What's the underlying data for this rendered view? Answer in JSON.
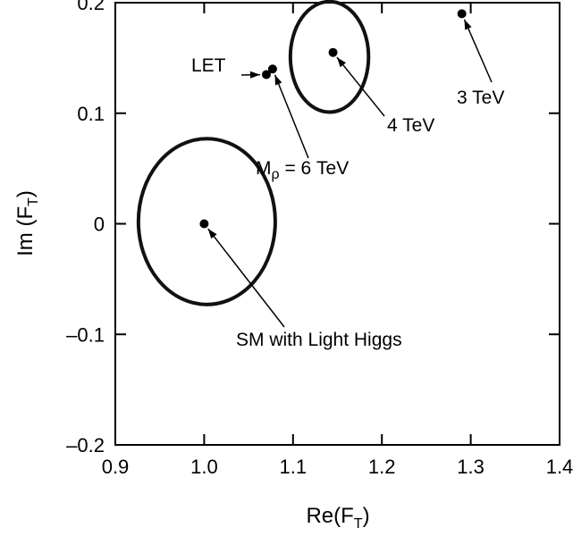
{
  "chart_data": {
    "type": "scatter",
    "title": "",
    "xlabel": {
      "main": "Re(F",
      "sub": "T",
      "close": ")"
    },
    "ylabel": {
      "main": "Im (F",
      "sub": "T",
      "close": ")"
    },
    "xlim": [
      0.9,
      1.4
    ],
    "ylim": [
      -0.2,
      0.2
    ],
    "xticks": [
      0.9,
      1.0,
      1.1,
      1.2,
      1.3,
      1.4
    ],
    "xtick_labels": [
      "0.9",
      "1.0",
      "1.1",
      "1.2",
      "1.3",
      "1.4"
    ],
    "yticks": [
      -0.2,
      -0.1,
      0,
      0.1,
      0.2
    ],
    "ytick_labels": [
      "–0.2",
      "–0.1",
      "0",
      "0.1",
      "0.2"
    ],
    "grid": false,
    "points": [
      {
        "id": "sm",
        "x": 1.0,
        "y": 0.0,
        "label": "SM with Light Higgs"
      },
      {
        "id": "let",
        "x": 1.07,
        "y": 0.135,
        "label": "LET"
      },
      {
        "id": "mrho6",
        "x": 1.077,
        "y": 0.14,
        "label_main": "M",
        "label_sub": "ρ",
        "label_rest": " = 6 TeV"
      },
      {
        "id": "tev4",
        "x": 1.145,
        "y": 0.155,
        "label": "4 TeV"
      },
      {
        "id": "tev3",
        "x": 1.29,
        "y": 0.19,
        "label": "3 TeV"
      }
    ],
    "ellipses": [
      {
        "id": "sm-contour",
        "cx": 1.003,
        "cy": 0.002,
        "rx": 0.077,
        "ry": 0.075
      },
      {
        "id": "tev4-contour",
        "cx": 1.141,
        "cy": 0.151,
        "rx": 0.044,
        "ry": 0.05
      }
    ]
  }
}
